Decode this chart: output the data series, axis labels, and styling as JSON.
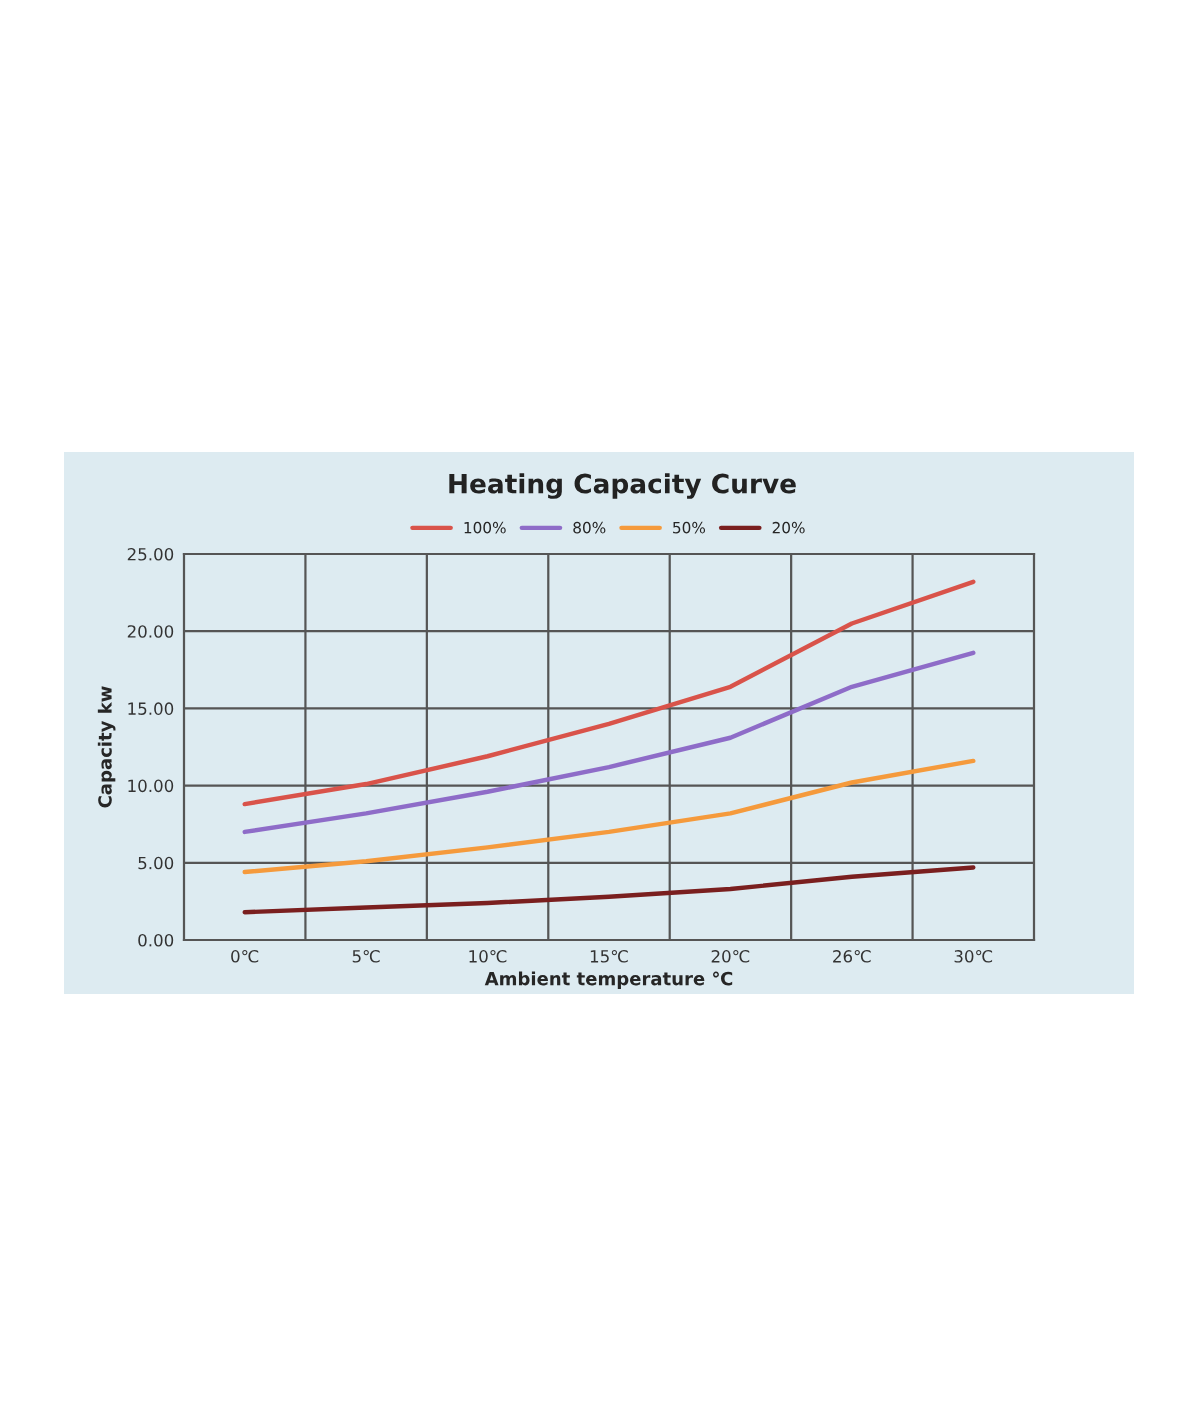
{
  "chart_data": {
    "type": "line",
    "title": "Heating Capacity Curve",
    "xlabel": "Ambient temperature ℃",
    "ylabel": "Capacity kw",
    "categories": [
      "0℃",
      "5℃",
      "10℃",
      "15℃",
      "20℃",
      "26℃",
      "30℃"
    ],
    "series": [
      {
        "name": "100%",
        "color": "#d9534a",
        "values": [
          8.8,
          10.1,
          11.9,
          14.0,
          16.4,
          20.5,
          23.2
        ]
      },
      {
        "name": "80%",
        "color": "#8e6cc8",
        "values": [
          7.0,
          8.2,
          9.6,
          11.2,
          13.1,
          16.4,
          18.6
        ]
      },
      {
        "name": "50%",
        "color": "#f59a3c",
        "values": [
          4.4,
          5.1,
          6.0,
          7.0,
          8.2,
          10.2,
          11.6
        ]
      },
      {
        "name": "20%",
        "color": "#7a1f1f",
        "values": [
          1.8,
          2.1,
          2.4,
          2.8,
          3.3,
          4.1,
          4.7
        ]
      }
    ],
    "ylim": [
      0,
      25
    ],
    "yticks": [
      {
        "value": 0,
        "label": "0.00"
      },
      {
        "value": 5,
        "label": "5.00"
      },
      {
        "value": 10,
        "label": "10.00"
      },
      {
        "value": 15,
        "label": "15.00"
      },
      {
        "value": 20,
        "label": "20.00"
      },
      {
        "value": 25,
        "label": "25.00"
      }
    ],
    "grid": true,
    "legend": "top",
    "marker": "none",
    "line_style": "solid"
  }
}
